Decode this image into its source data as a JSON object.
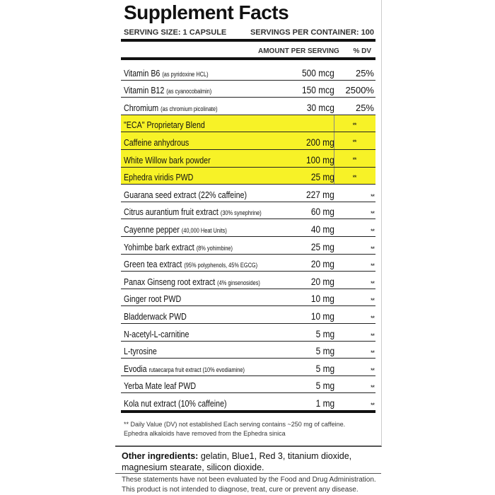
{
  "title": "Supplement Facts",
  "serving_size": "SERVING SIZE: 1 CAPSULE",
  "servings_per_container": "SERVINGS PER CONTAINER: 100",
  "header": {
    "amount": "AMOUNT PER SERVING",
    "dv": "% DV"
  },
  "rows": [
    {
      "name": "Vitamin B6",
      "note": "(as pyridoxine HCL)",
      "amount": "500 mcg",
      "dv": "25%",
      "highlight": false
    },
    {
      "name": "Vitamin B12",
      "note": "(as cyanocobalmin)",
      "amount": "150 mcg",
      "dv": "2500%",
      "highlight": false
    },
    {
      "name": "Chromium",
      "note": "(as chromium picolinate)",
      "amount": "30 mcg",
      "dv": "25%",
      "highlight": false
    },
    {
      "name": "\"ECA\" Proprietary Blend",
      "note": "",
      "amount": "",
      "dv": "**",
      "highlight": true
    },
    {
      "name": "Caffeine anhydrous",
      "note": "",
      "amount": "200 mg",
      "dv": "**",
      "highlight": true
    },
    {
      "name": "White Willow bark powder",
      "note": "",
      "amount": "100 mg",
      "dv": "**",
      "highlight": true
    },
    {
      "name": "Ephedra viridis PWD",
      "note": "",
      "amount": "25 mg",
      "dv": "**",
      "highlight": true
    },
    {
      "name": "Guarana seed extract (22% caffeine)",
      "note": "",
      "amount": "227 mg",
      "dv": "**",
      "highlight": false
    },
    {
      "name": "Citrus aurantium fruit extract",
      "note": "(30% synephrine)",
      "amount": "60 mg",
      "dv": "**",
      "highlight": false
    },
    {
      "name": "Cayenne pepper",
      "note": "(40,000 Heat Units)",
      "amount": "40 mg",
      "dv": "**",
      "highlight": false
    },
    {
      "name": "Yohimbe bark extract",
      "note": "(8% yohimbine)",
      "amount": "25 mg",
      "dv": "**",
      "highlight": false
    },
    {
      "name": "Green tea extract",
      "note": "(95% polyphenols, 45% EGCG)",
      "amount": "20 mg",
      "dv": "**",
      "highlight": false
    },
    {
      "name": "Panax Ginseng root extract",
      "note": "(4% ginsenosides)",
      "amount": "20 mg",
      "dv": "**",
      "highlight": false
    },
    {
      "name": "Ginger root PWD",
      "note": "",
      "amount": "10 mg",
      "dv": "**",
      "highlight": false
    },
    {
      "name": "Bladderwack PWD",
      "note": "",
      "amount": "10 mg",
      "dv": "**",
      "highlight": false
    },
    {
      "name": "N-acetyl-L-carnitine",
      "note": "",
      "amount": "5 mg",
      "dv": "**",
      "highlight": false
    },
    {
      "name": "L-tyrosine",
      "note": "",
      "amount": "5 mg",
      "dv": "**",
      "highlight": false
    },
    {
      "name": "Evodia",
      "note": "rutaecarpa fruit extract (10% evodiamine)",
      "amount": "5 mg",
      "dv": "**",
      "highlight": false
    },
    {
      "name": "Yerba Mate leaf PWD",
      "note": "",
      "amount": "5 mg",
      "dv": "**",
      "highlight": false
    },
    {
      "name": "Kola nut extract (10% caffeine)",
      "note": "",
      "amount": "1 mg",
      "dv": "**",
      "highlight": false
    }
  ],
  "footnote1": "** Daily Value (DV) not established     Each serving contains ~250 mg of caffeine.",
  "footnote2": "Ephedra alkaloids have removed from the Ephedra sinica",
  "other_label": "Other ingredients:",
  "other_text": " gelatin, Blue1, Red 3, titanium dioxide, magnesium stearate, silicon dioxide.",
  "disclaimer1": "These statements have not been evaluated by the Food and Drug Administration.",
  "disclaimer2": "This product is not intended to diagnose, treat, cure or prevent any disease.",
  "colors": {
    "highlight": "#f7f227"
  }
}
